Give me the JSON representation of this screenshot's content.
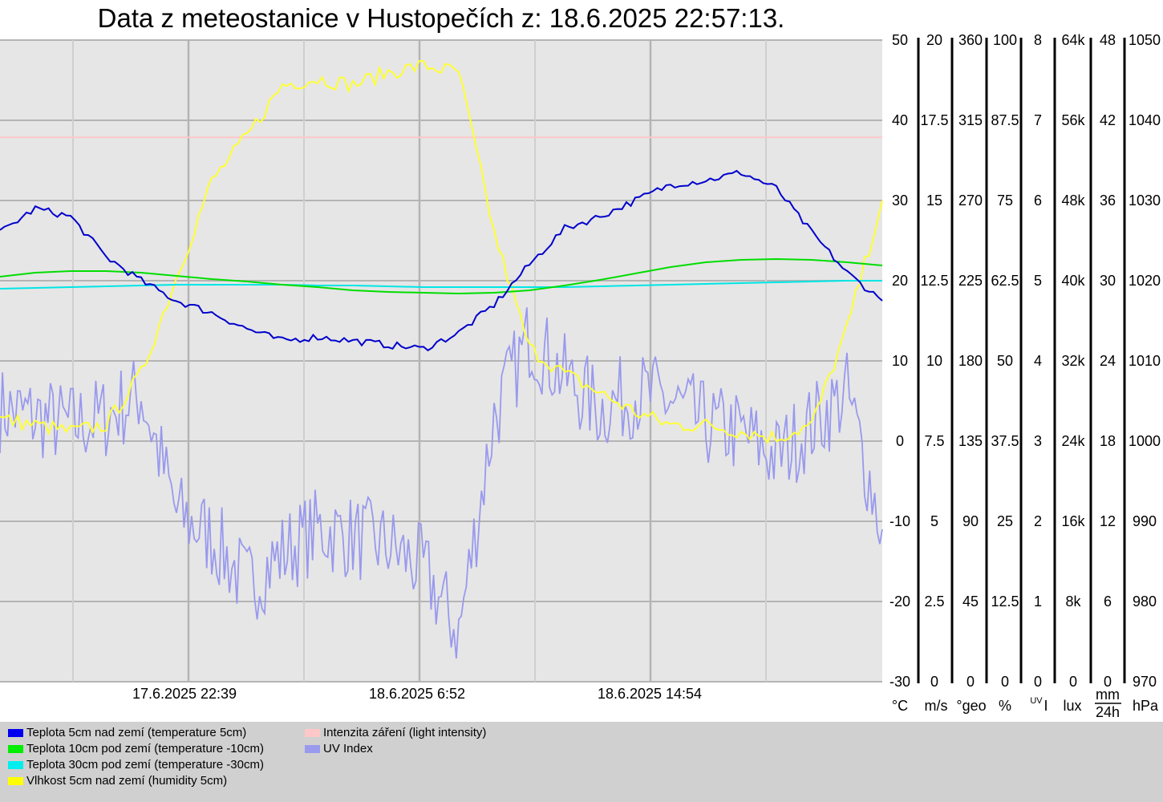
{
  "title": "Data z meteostanice v Hustopečích z: 18.6.2025 22:57:13.",
  "chart_data": {
    "type": "line",
    "title": "Data z meteostanice v Hustopečích z: 18.6.2025 22:57:13.",
    "x_labels": [
      "17.6.2025 22:39",
      "18.6.2025 6:52",
      "18.6.2025 14:54"
    ],
    "axes": [
      {
        "unit": "°C",
        "ticks": [
          "50",
          "40",
          "30",
          "20",
          "10",
          "0",
          "-10",
          "-20",
          "-30"
        ]
      },
      {
        "unit": "m/s",
        "ticks": [
          "20",
          "17.5",
          "15",
          "12.5",
          "10",
          "7.5",
          "5",
          "2.5",
          "0"
        ]
      },
      {
        "unit": "°geo",
        "ticks": [
          "360",
          "315",
          "270",
          "225",
          "180",
          "135",
          "90",
          "45",
          "0"
        ]
      },
      {
        "unit": "%",
        "ticks": [
          "100",
          "87.5",
          "75",
          "62.5",
          "50",
          "37.5",
          "25",
          "12.5",
          "0"
        ]
      },
      {
        "unit": "UVI",
        "ticks": [
          "8",
          "7",
          "6",
          "5",
          "4",
          "3",
          "2",
          "1",
          "0"
        ]
      },
      {
        "unit": "lux",
        "ticks": [
          "64k",
          "56k",
          "48k",
          "40k",
          "32k",
          "24k",
          "16k",
          "8k",
          "0"
        ]
      },
      {
        "unit": "mm/24h",
        "ticks": [
          "48",
          "42",
          "36",
          "30",
          "24",
          "18",
          "12",
          "6",
          "0"
        ]
      },
      {
        "unit": "hPa",
        "ticks": [
          "1050",
          "1040",
          "1030",
          "1020",
          "1010",
          "1000",
          "990",
          "980",
          "970"
        ]
      }
    ],
    "unit_labels": {
      "c": "°C",
      "ms": "m/s",
      "geo": "°geo",
      "pct": "%",
      "uvi_sup": "UV",
      "uvi": "I",
      "lux": "lux",
      "mm": "mm",
      "h24": "24h",
      "hpa": "hPa"
    },
    "t": [
      0,
      0.04,
      0.08,
      0.12,
      0.16,
      0.2,
      0.24,
      0.28,
      0.32,
      0.36,
      0.4,
      0.44,
      0.48,
      0.52,
      0.56,
      0.6,
      0.64,
      0.68,
      0.72,
      0.76,
      0.8,
      0.84,
      0.88,
      0.92,
      0.96,
      1.0
    ],
    "series": [
      {
        "name": "Teplota 5cm nad zemí (temperature 5cm)",
        "axis": "°C",
        "color": "#0000cc",
        "values": [
          26,
          29,
          28,
          23,
          20,
          17.5,
          16,
          14,
          12.5,
          13,
          12.5,
          12,
          11.5,
          13.5,
          17,
          22,
          26.5,
          28,
          30,
          32,
          32.5,
          33.5,
          31.5,
          26,
          21,
          17.5
        ]
      },
      {
        "name": "Teplota 10cm pod zemí (temperature -10cm)",
        "axis": "°C",
        "color": "#00dd00",
        "values": [
          20.5,
          21,
          21.2,
          21.2,
          21,
          20.6,
          20.2,
          19.9,
          19.5,
          19.2,
          18.8,
          18.6,
          18.5,
          18.4,
          18.5,
          18.8,
          19.4,
          20.1,
          20.9,
          21.7,
          22.3,
          22.6,
          22.7,
          22.6,
          22.3,
          21.9
        ]
      },
      {
        "name": "Teplota 30cm pod zemí (temperature -30cm)",
        "axis": "°C",
        "color": "#00e5e5",
        "values": [
          19,
          19.1,
          19.2,
          19.3,
          19.4,
          19.5,
          19.5,
          19.5,
          19.5,
          19.4,
          19.4,
          19.3,
          19.2,
          19.2,
          19.2,
          19.2,
          19.2,
          19.3,
          19.4,
          19.5,
          19.6,
          19.7,
          19.8,
          19.9,
          20,
          20
        ]
      },
      {
        "name": "Vlhkost 5cm nad zemí (humidity 5cm)",
        "axis": "%",
        "color": "#ffff33",
        "values": [
          41,
          40,
          39,
          40,
          48,
          63,
          78,
          85,
          93,
          94,
          93,
          95,
          96,
          95,
          70,
          52,
          48,
          45,
          42,
          40,
          40,
          39,
          38,
          40,
          55,
          75
        ]
      },
      {
        "name": "Intenzita záření (light intensity)",
        "axis": "lux",
        "color": "#ffc8c8",
        "values": [
          54300,
          54300,
          54300,
          54300,
          54300,
          54300,
          54300,
          54300,
          54300,
          54300,
          54300,
          54300,
          54300,
          54300,
          54300,
          54300,
          54300,
          54300,
          54300,
          54300,
          54300,
          54300,
          54300,
          54300,
          54300,
          54300
        ]
      },
      {
        "name": "UV Index",
        "axis": "UVI",
        "color": "#9999ee",
        "values": [
          3.4,
          3.3,
          3.2,
          3.3,
          3.6,
          2.1,
          1.8,
          1.2,
          1.6,
          1.9,
          1.8,
          1.7,
          1.4,
          0.6,
          3.3,
          4.3,
          3.8,
          3.4,
          3.6,
          3.5,
          3.2,
          3.1,
          2.8,
          3.2,
          3.6,
          1.9
        ]
      }
    ]
  },
  "legend": [
    {
      "label": "Teplota 5cm nad zemí (temperature 5cm)",
      "color": "#0000ee"
    },
    {
      "label": "Teplota 10cm pod zemí (temperature -10cm)",
      "color": "#00ee00"
    },
    {
      "label": "Teplota 30cm pod zemí (temperature -30cm)",
      "color": "#00eeee"
    },
    {
      "label": "Vlhkost 5cm nad zemí (humidity 5cm)",
      "color": "#ffff00"
    },
    {
      "label": "Intenzita záření (light intensity)",
      "color": "#ffc8c8"
    },
    {
      "label": "UV Index",
      "color": "#9999ee"
    }
  ]
}
